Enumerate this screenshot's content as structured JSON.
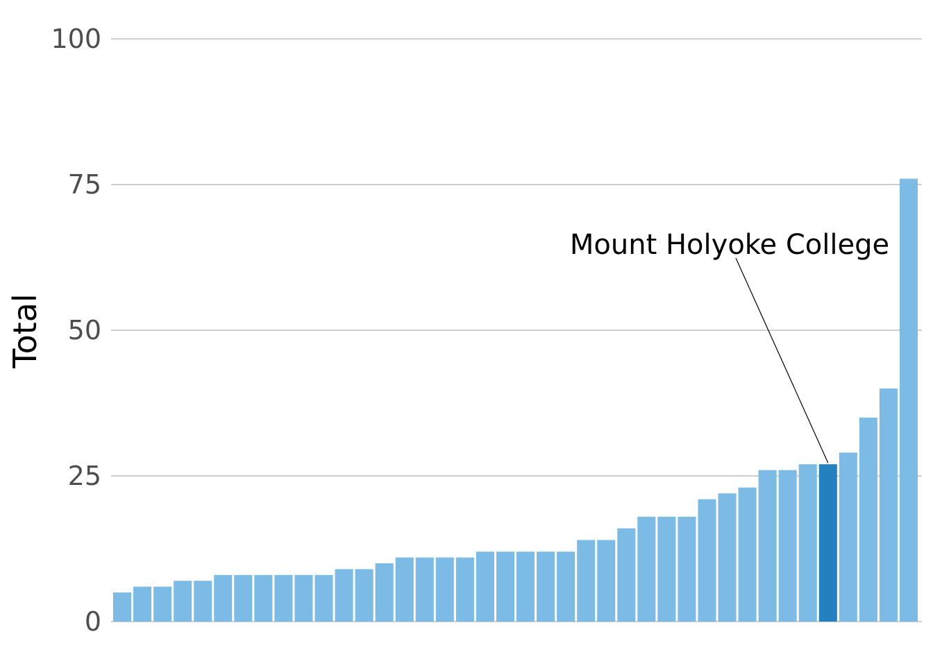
{
  "chart_data": {
    "type": "bar",
    "ylabel": "Total",
    "xlabel": "",
    "ylim": [
      0,
      100
    ],
    "yticks": [
      0,
      25,
      50,
      75,
      100
    ],
    "ytick_labels": [
      "0",
      "25",
      "50",
      "75",
      "100"
    ],
    "grid": true,
    "values": [
      5,
      6,
      6,
      7,
      7,
      8,
      8,
      8,
      8,
      8,
      8,
      9,
      9,
      10,
      11,
      11,
      11,
      11,
      12,
      12,
      12,
      12,
      12,
      14,
      14,
      16,
      18,
      18,
      18,
      21,
      22,
      23,
      26,
      26,
      27,
      27,
      29,
      35,
      40,
      76
    ],
    "highlight_index": 35,
    "annotation": {
      "label": "Mount Holyoke College",
      "bar_index": 35
    },
    "colors": {
      "bar": "#7cbbe6",
      "highlight": "#2480bf",
      "grid": "#bdbdbd",
      "tick_text": "#4d4d4d",
      "annotation_line": "#000000"
    }
  }
}
